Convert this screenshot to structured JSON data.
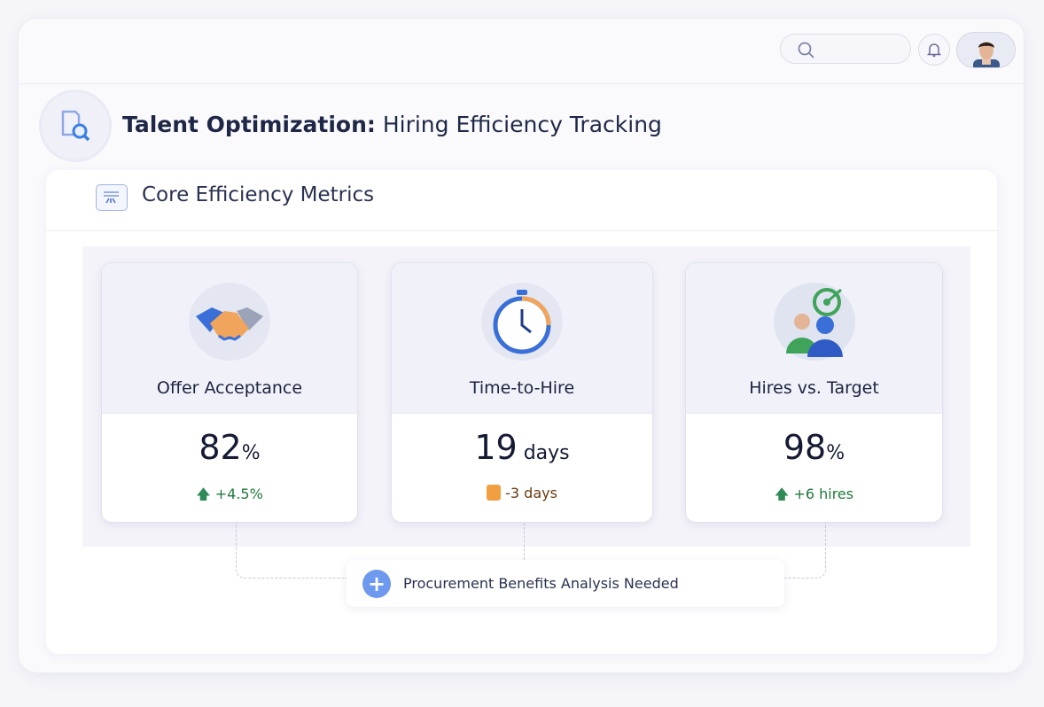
{
  "header": {
    "search": {
      "placeholder": "",
      "icon": "search-icon"
    },
    "notifications_icon": "bell-icon",
    "avatar": "user-avatar"
  },
  "page": {
    "title_bold": "Talent Optimization:",
    "title_rest": " Hiring Efficiency Tracking"
  },
  "panel": {
    "title": "Core Efficiency Metrics"
  },
  "metrics": [
    {
      "label": "Offer Acceptance",
      "value": "82",
      "unit": "%",
      "change": "+4.5%",
      "trend": "up",
      "color": "#1f7a3a",
      "icon": "handshake-icon"
    },
    {
      "label": "Time-to-Hire",
      "value": "19",
      "unit": " days",
      "change": "-3 days",
      "trend": "down",
      "color": "#6b3a12",
      "icon": "stopwatch-icon"
    },
    {
      "label": "Hires vs. Target",
      "value": "98",
      "unit": "%",
      "change": "+6 hires",
      "trend": "up",
      "color": "#1f7a3a",
      "icon": "people-target-icon"
    }
  ],
  "action": {
    "label": "Procurement Benefits Analysis Needed",
    "icon": "plus-icon",
    "accent": "#6d9aee"
  }
}
